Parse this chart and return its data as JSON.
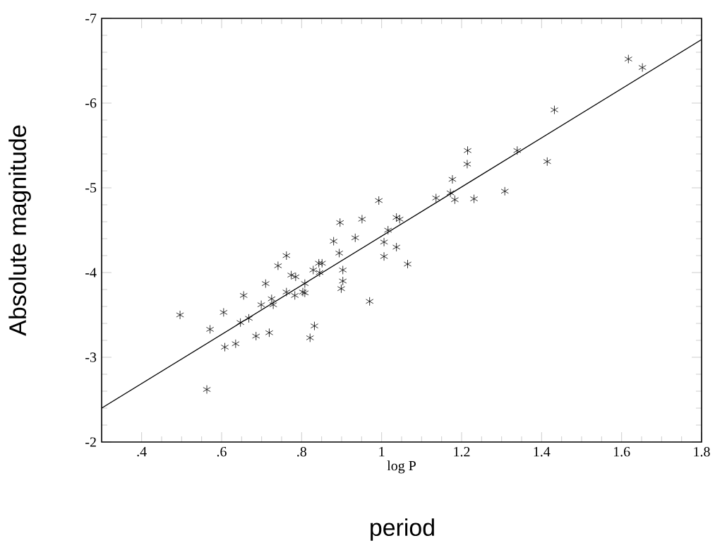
{
  "chart_data": {
    "type": "scatter",
    "xlabel": "log P",
    "ylabel": "Absolute magnitude",
    "annotations": [
      "period"
    ],
    "xlim": [
      0.3,
      1.8
    ],
    "ylim": [
      -2,
      -7
    ],
    "xticks": [
      {
        "value": 0.4,
        "label": ".4"
      },
      {
        "value": 0.6,
        "label": ".6"
      },
      {
        "value": 0.8,
        "label": ".8"
      },
      1,
      1.2,
      1.4,
      1.6,
      1.8
    ],
    "yticks": [
      -7,
      -6,
      -5,
      -4,
      -3,
      -2
    ],
    "marker": "cross",
    "series": [
      {
        "color": "#000000",
        "x": [
          0.496,
          0.563,
          0.571,
          0.605,
          0.608,
          0.635,
          0.647,
          0.655,
          0.668,
          0.686,
          0.699,
          0.71,
          0.719,
          0.725,
          0.729,
          0.741,
          0.762,
          0.762,
          0.774,
          0.785,
          0.783,
          0.803,
          0.808,
          0.808,
          0.821,
          0.832,
          0.829,
          0.843,
          0.851,
          0.845,
          0.896,
          0.951,
          0.993,
          0.934,
          0.88,
          0.894,
          0.903,
          0.903,
          0.899,
          0.97,
          1.006,
          1.006,
          1.016,
          1.037,
          1.045,
          1.037,
          1.065,
          1.136,
          1.172,
          1.183,
          1.177,
          1.214,
          1.215,
          1.231,
          1.308,
          1.339,
          1.414,
          1.432,
          1.617,
          1.652
        ],
        "values": [
          -3.5,
          -2.62,
          -3.33,
          -3.53,
          -3.12,
          -3.16,
          -3.41,
          -3.73,
          -3.46,
          -3.25,
          -3.62,
          -3.87,
          -3.29,
          -3.69,
          -3.62,
          -4.08,
          -4.2,
          -3.77,
          -3.97,
          -3.95,
          -3.73,
          -3.77,
          -3.76,
          -3.87,
          -3.23,
          -3.37,
          -4.03,
          -4.11,
          -4.11,
          -4.0,
          -4.59,
          -4.63,
          -4.85,
          -4.41,
          -4.37,
          -4.23,
          -4.03,
          -3.9,
          -3.81,
          -3.66,
          -4.36,
          -4.19,
          -4.5,
          -4.65,
          -4.63,
          -4.3,
          -4.1,
          -4.88,
          -4.94,
          -4.86,
          -5.1,
          -5.28,
          -5.44,
          -4.87,
          -4.96,
          -5.44,
          -5.31,
          -5.92,
          -6.52,
          -6.42
        ]
      },
      {
        "type": "line",
        "color": "#000000",
        "marker": "none",
        "x": [
          0.3,
          1.8
        ],
        "values": [
          -2.4,
          -6.75
        ]
      }
    ]
  }
}
